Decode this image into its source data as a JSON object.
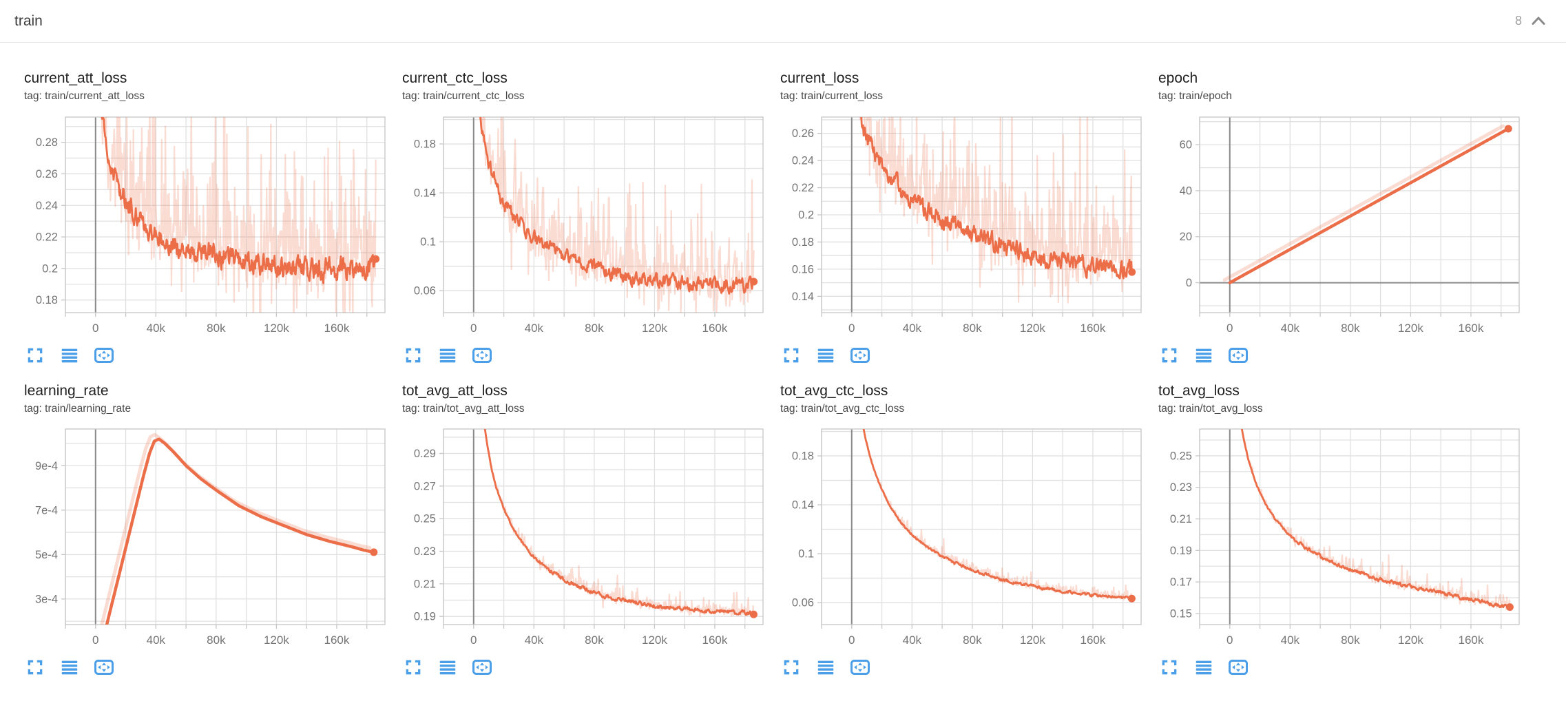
{
  "header": {
    "title": "train",
    "count": "8",
    "collapse_icon": "chevron-up-icon"
  },
  "colors": {
    "line": "#ec6e49",
    "line_light": "rgba(236,110,73,0.24)",
    "icon_blue": "#4a9fe8",
    "grid": "#e0e0e0",
    "border": "#c6c6c6",
    "zero": "#8a8a8a",
    "tick_label": "#757575",
    "title": "#212121",
    "tag": "#484848"
  },
  "x_axis": {
    "lim": [
      -20000,
      192000
    ],
    "minor_step": 20000,
    "ticks": [
      {
        "v": 0,
        "label": "0"
      },
      {
        "v": 40000,
        "label": "40k"
      },
      {
        "v": 80000,
        "label": "80k"
      },
      {
        "v": 120000,
        "label": "120k"
      },
      {
        "v": 160000,
        "label": "160k"
      }
    ]
  },
  "toolbar_icons": [
    {
      "name": "fullscreen-icon"
    },
    {
      "name": "data-table-icon"
    },
    {
      "name": "fit-domain-icon"
    }
  ],
  "chart_data": [
    {
      "type": "line",
      "title": "current_att_loss",
      "tag": "tag: train/current_att_loss",
      "ylim": [
        0.172,
        0.296
      ],
      "minor_step": 0.01,
      "yticks": [
        {
          "v": 0.18,
          "label": "0.18"
        },
        {
          "v": 0.2,
          "label": "0.2"
        },
        {
          "v": 0.22,
          "label": "0.22"
        },
        {
          "v": 0.24,
          "label": "0.24"
        },
        {
          "v": 0.26,
          "label": "0.26"
        },
        {
          "v": 0.28,
          "label": "0.28"
        }
      ],
      "trend": [
        [
          1500,
          0.34
        ],
        [
          4000,
          0.3
        ],
        [
          8000,
          0.27
        ],
        [
          15000,
          0.252
        ],
        [
          25000,
          0.235
        ],
        [
          40000,
          0.222
        ],
        [
          60000,
          0.213
        ],
        [
          80000,
          0.208
        ],
        [
          100000,
          0.204
        ],
        [
          120000,
          0.201
        ],
        [
          150000,
          0.199
        ],
        [
          186000,
          0.2
        ]
      ],
      "noise": {
        "smooth": 0.0075,
        "raw": 0.05,
        "seed": 11
      },
      "end_dot": true,
      "final_value": 0.2
    },
    {
      "type": "line",
      "title": "current_ctc_loss",
      "tag": "tag: train/current_ctc_loss",
      "ylim": [
        0.042,
        0.202
      ],
      "minor_step": 0.02,
      "yticks": [
        {
          "v": 0.06,
          "label": "0.06"
        },
        {
          "v": 0.1,
          "label": "0.1"
        },
        {
          "v": 0.14,
          "label": "0.14"
        },
        {
          "v": 0.18,
          "label": "0.18"
        }
      ],
      "trend": [
        [
          1500,
          0.245
        ],
        [
          5000,
          0.2
        ],
        [
          10000,
          0.165
        ],
        [
          15000,
          0.145
        ],
        [
          20000,
          0.132
        ],
        [
          30000,
          0.115
        ],
        [
          40000,
          0.103
        ],
        [
          55000,
          0.092
        ],
        [
          70000,
          0.083
        ],
        [
          85000,
          0.077
        ],
        [
          100000,
          0.072
        ],
        [
          120000,
          0.068
        ],
        [
          150000,
          0.065
        ],
        [
          186000,
          0.064
        ]
      ],
      "noise": {
        "smooth": 0.006,
        "raw": 0.042,
        "seed": 22
      },
      "end_dot": true,
      "final_value": 0.064
    },
    {
      "type": "line",
      "title": "current_loss",
      "tag": "tag: train/current_loss",
      "ylim": [
        0.128,
        0.272
      ],
      "minor_step": 0.01,
      "yticks": [
        {
          "v": 0.14,
          "label": "0.14"
        },
        {
          "v": 0.16,
          "label": "0.16"
        },
        {
          "v": 0.18,
          "label": "0.18"
        },
        {
          "v": 0.2,
          "label": "0.2"
        },
        {
          "v": 0.22,
          "label": "0.22"
        },
        {
          "v": 0.24,
          "label": "0.24"
        },
        {
          "v": 0.26,
          "label": "0.26"
        }
      ],
      "trend": [
        [
          1500,
          0.31
        ],
        [
          4000,
          0.285
        ],
        [
          8000,
          0.262
        ],
        [
          15000,
          0.244
        ],
        [
          25000,
          0.228
        ],
        [
          40000,
          0.21
        ],
        [
          60000,
          0.196
        ],
        [
          80000,
          0.186
        ],
        [
          100000,
          0.177
        ],
        [
          120000,
          0.17
        ],
        [
          150000,
          0.163
        ],
        [
          186000,
          0.16
        ]
      ],
      "noise": {
        "smooth": 0.007,
        "raw": 0.045,
        "seed": 33
      },
      "end_dot": true,
      "final_value": 0.16
    },
    {
      "type": "line",
      "title": "epoch",
      "tag": "tag: train/epoch",
      "ylim": [
        -13,
        72
      ],
      "minor_step": 10,
      "yticks": [
        {
          "v": 0,
          "label": "0"
        },
        {
          "v": 20,
          "label": "20"
        },
        {
          "v": 40,
          "label": "40"
        },
        {
          "v": 60,
          "label": "60"
        }
      ],
      "trend": [
        [
          0,
          0
        ],
        [
          185000,
          67
        ]
      ],
      "shadow": [
        -3500,
        1.2
      ],
      "end_dot": true,
      "final_value": 67
    },
    {
      "type": "line",
      "title": "learning_rate",
      "tag": "tag: train/learning_rate",
      "ylim": [
        0.000185,
        0.001065
      ],
      "minor_step": 0.0001,
      "yticks": [
        {
          "v": 0.0003,
          "label": "3e-4"
        },
        {
          "v": 0.0005,
          "label": "5e-4"
        },
        {
          "v": 0.0007,
          "label": "7e-4"
        },
        {
          "v": 0.0009,
          "label": "9e-4"
        }
      ],
      "trend": [
        [
          3000,
          6e-05
        ],
        [
          8000,
          0.0002
        ],
        [
          12000,
          0.00031
        ],
        [
          16000,
          0.00042
        ],
        [
          20000,
          0.00053
        ],
        [
          24000,
          0.00064
        ],
        [
          28000,
          0.00075
        ],
        [
          32000,
          0.00086
        ],
        [
          36000,
          0.00096
        ],
        [
          39000,
          0.00101
        ],
        [
          42000,
          0.00102
        ],
        [
          46000,
          0.001
        ],
        [
          52000,
          0.00096
        ],
        [
          60000,
          0.0009
        ],
        [
          70000,
          0.00084
        ],
        [
          80000,
          0.00079
        ],
        [
          95000,
          0.00072
        ],
        [
          110000,
          0.00067
        ],
        [
          125000,
          0.00063
        ],
        [
          140000,
          0.00059
        ],
        [
          155000,
          0.00056
        ],
        [
          170000,
          0.000535
        ],
        [
          178000,
          0.00052
        ],
        [
          185000,
          0.00051
        ]
      ],
      "shadow": [
        -2600,
        2e-05
      ],
      "end_dot": true,
      "final_value": 0.00051
    },
    {
      "type": "line",
      "title": "tot_avg_att_loss",
      "tag": "tag: train/tot_avg_att_loss",
      "ylim": [
        0.185,
        0.305
      ],
      "minor_step": 0.01,
      "yticks": [
        {
          "v": 0.19,
          "label": "0.19"
        },
        {
          "v": 0.21,
          "label": "0.21"
        },
        {
          "v": 0.23,
          "label": "0.23"
        },
        {
          "v": 0.25,
          "label": "0.25"
        },
        {
          "v": 0.27,
          "label": "0.27"
        },
        {
          "v": 0.29,
          "label": "0.29"
        }
      ],
      "trend": [
        [
          3000,
          0.335
        ],
        [
          6000,
          0.315
        ],
        [
          9000,
          0.295
        ],
        [
          12000,
          0.28
        ],
        [
          15000,
          0.269
        ],
        [
          18000,
          0.261
        ],
        [
          21000,
          0.254
        ],
        [
          25000,
          0.246
        ],
        [
          30000,
          0.238
        ],
        [
          35000,
          0.232
        ],
        [
          40000,
          0.2265
        ],
        [
          45000,
          0.222
        ],
        [
          50000,
          0.2185
        ],
        [
          60000,
          0.2125
        ],
        [
          70000,
          0.208
        ],
        [
          80000,
          0.2045
        ],
        [
          90000,
          0.2015
        ],
        [
          100000,
          0.1995
        ],
        [
          115000,
          0.197
        ],
        [
          130000,
          0.1952
        ],
        [
          150000,
          0.1936
        ],
        [
          170000,
          0.1925
        ],
        [
          186000,
          0.192
        ]
      ],
      "noise": {
        "smooth": 0.0013,
        "raw": 0.0055,
        "seed": 44,
        "ramp": true
      },
      "end_dot": true,
      "final_value": 0.192
    },
    {
      "type": "line",
      "title": "tot_avg_ctc_loss",
      "tag": "tag: train/tot_avg_ctc_loss",
      "ylim": [
        0.042,
        0.202
      ],
      "minor_step": 0.02,
      "yticks": [
        {
          "v": 0.06,
          "label": "0.06"
        },
        {
          "v": 0.1,
          "label": "0.1"
        },
        {
          "v": 0.14,
          "label": "0.14"
        },
        {
          "v": 0.18,
          "label": "0.18"
        }
      ],
      "trend": [
        [
          3000,
          0.24
        ],
        [
          6000,
          0.215
        ],
        [
          9000,
          0.195
        ],
        [
          12000,
          0.18
        ],
        [
          15000,
          0.168
        ],
        [
          18000,
          0.158
        ],
        [
          21000,
          0.15
        ],
        [
          25000,
          0.14
        ],
        [
          30000,
          0.13
        ],
        [
          35000,
          0.122
        ],
        [
          40000,
          0.1155
        ],
        [
          45000,
          0.11
        ],
        [
          50000,
          0.1055
        ],
        [
          60000,
          0.0975
        ],
        [
          70000,
          0.0915
        ],
        [
          80000,
          0.0868
        ],
        [
          90000,
          0.0825
        ],
        [
          100000,
          0.0785
        ],
        [
          115000,
          0.0745
        ],
        [
          130000,
          0.0712
        ],
        [
          150000,
          0.0675
        ],
        [
          170000,
          0.0648
        ],
        [
          186000,
          0.0635
        ]
      ],
      "noise": {
        "smooth": 0.0012,
        "raw": 0.005,
        "seed": 55,
        "ramp": true
      },
      "end_dot": true,
      "final_value": 0.0635
    },
    {
      "type": "line",
      "title": "tot_avg_loss",
      "tag": "tag: train/tot_avg_loss",
      "ylim": [
        0.143,
        0.267
      ],
      "minor_step": 0.01,
      "yticks": [
        {
          "v": 0.15,
          "label": "0.15"
        },
        {
          "v": 0.17,
          "label": "0.17"
        },
        {
          "v": 0.19,
          "label": "0.19"
        },
        {
          "v": 0.21,
          "label": "0.21"
        },
        {
          "v": 0.23,
          "label": "0.23"
        },
        {
          "v": 0.25,
          "label": "0.25"
        }
      ],
      "trend": [
        [
          3000,
          0.295
        ],
        [
          6000,
          0.278
        ],
        [
          9000,
          0.262
        ],
        [
          12000,
          0.249
        ],
        [
          15000,
          0.239
        ],
        [
          18000,
          0.231
        ],
        [
          21000,
          0.225
        ],
        [
          25000,
          0.2175
        ],
        [
          30000,
          0.21
        ],
        [
          35000,
          0.2045
        ],
        [
          40000,
          0.1995
        ],
        [
          45000,
          0.1955
        ],
        [
          50000,
          0.192
        ],
        [
          60000,
          0.1865
        ],
        [
          70000,
          0.182
        ],
        [
          80000,
          0.178
        ],
        [
          90000,
          0.1745
        ],
        [
          100000,
          0.1715
        ],
        [
          115000,
          0.168
        ],
        [
          130000,
          0.165
        ],
        [
          150000,
          0.161
        ],
        [
          170000,
          0.157
        ],
        [
          186000,
          0.154
        ]
      ],
      "noise": {
        "smooth": 0.0012,
        "raw": 0.005,
        "seed": 66,
        "ramp": true
      },
      "end_dot": true,
      "final_value": 0.154
    }
  ]
}
